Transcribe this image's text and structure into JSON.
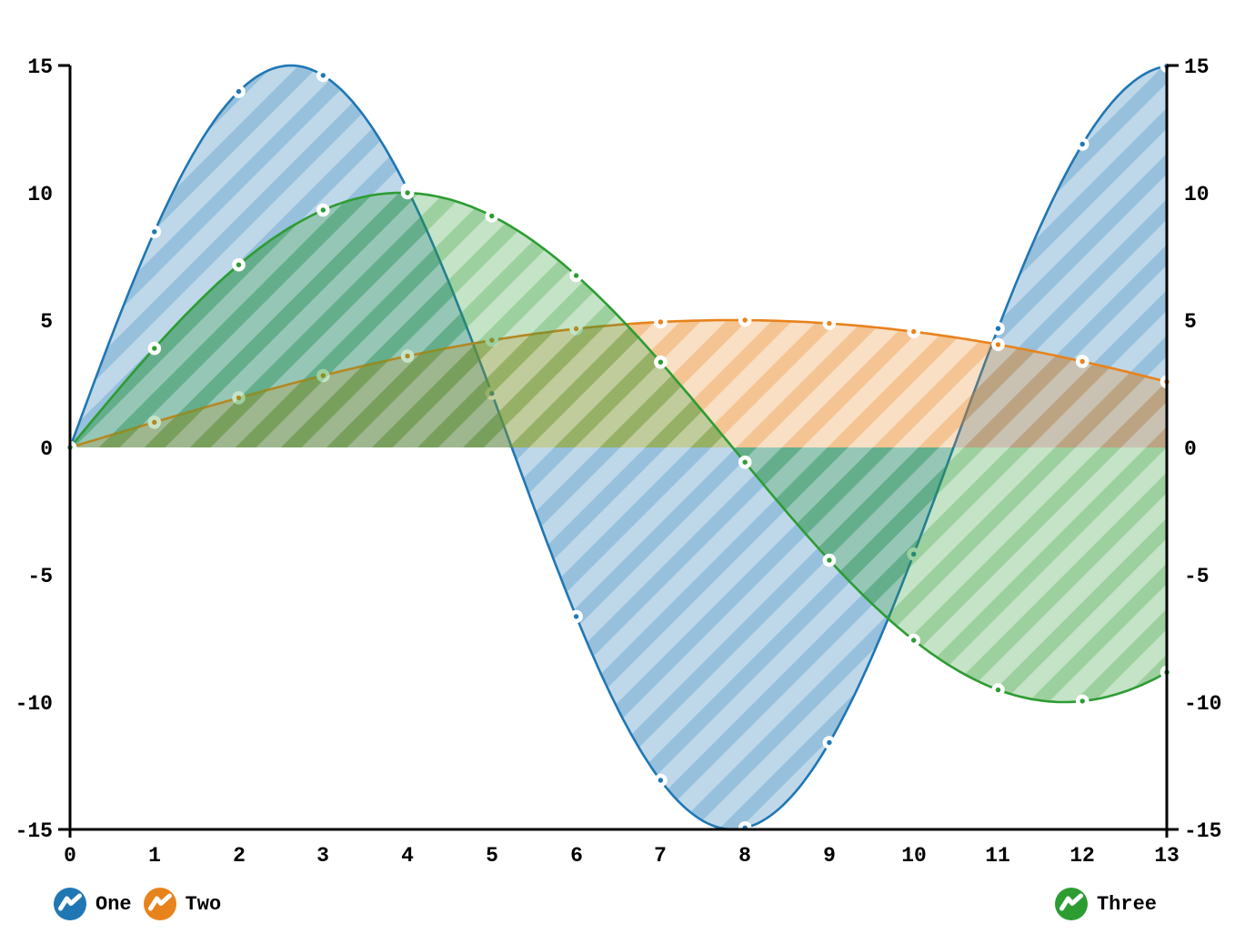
{
  "chart_data": {
    "type": "area",
    "title": "",
    "xlabel": "",
    "ylabel": "",
    "xlim": [
      0,
      13
    ],
    "ylim": [
      -15,
      15
    ],
    "xticks": [
      0,
      1,
      2,
      3,
      4,
      5,
      6,
      7,
      8,
      9,
      10,
      11,
      12,
      13
    ],
    "yticks": [
      -15,
      -10,
      -5,
      0,
      5,
      10,
      15
    ],
    "yticks_right": [
      -15,
      -10,
      -5,
      0,
      5,
      10,
      15
    ],
    "grid": false,
    "background": "#ffffff",
    "axis_color": "#000000",
    "hatch": "diagonal-forward-slash",
    "x": [
      0,
      1,
      2,
      3,
      4,
      5,
      6,
      7,
      8,
      9,
      10,
      11,
      12,
      13
    ],
    "series": [
      {
        "name": "One",
        "color": "#1f77b4",
        "shape": "sine",
        "amplitude": 15,
        "omega": 0.6,
        "base_opacity": 0.29,
        "stripe_opacity": 0.25,
        "values": [
          0,
          8.47,
          13.98,
          14.61,
          10.13,
          2.12,
          -6.64,
          -13.07,
          -14.94,
          -11.59,
          -4.19,
          4.67,
          11.91,
          14.98
        ]
      },
      {
        "name": "Two",
        "color": "#e8821c",
        "shape": "sine",
        "amplitude": 5,
        "omega": 0.2,
        "base_opacity": 0.26,
        "stripe_opacity": 0.29,
        "values": [
          0,
          0.99,
          1.95,
          2.82,
          3.59,
          4.21,
          4.66,
          4.93,
          5.0,
          4.87,
          4.55,
          4.04,
          3.38,
          2.58
        ]
      },
      {
        "name": "Three",
        "color": "#2d9c33",
        "shape": "sine",
        "amplitude": 10,
        "omega": 0.4,
        "base_opacity": 0.28,
        "stripe_opacity": 0.27,
        "values": [
          0,
          3.89,
          7.17,
          9.32,
          10.0,
          9.09,
          6.75,
          3.35,
          -0.58,
          -4.43,
          -7.57,
          -9.52,
          -9.96,
          -8.83
        ]
      }
    ],
    "legend": {
      "position": "bottom",
      "icon": "line-chart-circle",
      "items": [
        "One",
        "Two",
        "Three"
      ]
    }
  }
}
